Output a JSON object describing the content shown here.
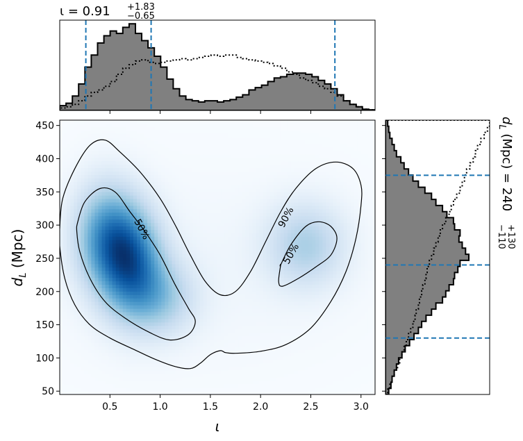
{
  "chart_data": [
    {
      "id": "joint",
      "type": "heatmap",
      "xlabel": "ι",
      "ylabel": "d_L (Mpc)",
      "xlim": [
        0.0,
        3.14
      ],
      "ylim": [
        45,
        458
      ],
      "xticks": [
        0.5,
        1.0,
        1.5,
        2.0,
        2.5,
        3.0
      ],
      "xtick_labels": [
        "0.5",
        "1.0",
        "1.5",
        "2.0",
        "2.5",
        "3.0"
      ],
      "yticks": [
        50,
        100,
        150,
        200,
        250,
        300,
        350,
        400,
        450
      ],
      "ytick_labels": [
        "50",
        "100",
        "150",
        "200",
        "250",
        "300",
        "350",
        "400",
        "450"
      ],
      "colormap": "Blues",
      "density_peaks": [
        {
          "x": 0.7,
          "y": 245,
          "weight": 1.0
        },
        {
          "x": 0.45,
          "y": 285,
          "weight": 0.7
        },
        {
          "x": 1.0,
          "y": 190,
          "weight": 0.45
        },
        {
          "x": 2.45,
          "y": 270,
          "weight": 0.45
        }
      ],
      "contours": [
        {
          "label": "90%",
          "label_at": [
            2.25,
            312
          ],
          "paths": [
            [
              [
                0.0,
                295
              ],
              [
                0.03,
                340
              ],
              [
                0.15,
                385
              ],
              [
                0.3,
                420
              ],
              [
                0.45,
                428
              ],
              [
                0.6,
                410
              ],
              [
                0.8,
                380
              ],
              [
                1.0,
                340
              ],
              [
                1.15,
                300
              ],
              [
                1.3,
                255
              ],
              [
                1.45,
                215
              ],
              [
                1.6,
                195
              ],
              [
                1.75,
                200
              ],
              [
                1.9,
                230
              ],
              [
                2.05,
                275
              ],
              [
                2.2,
                320
              ],
              [
                2.35,
                355
              ],
              [
                2.55,
                385
              ],
              [
                2.75,
                395
              ],
              [
                2.92,
                385
              ],
              [
                3.0,
                360
              ],
              [
                3.0,
                330
              ],
              [
                2.95,
                280
              ],
              [
                2.85,
                230
              ],
              [
                2.7,
                185
              ],
              [
                2.5,
                145
              ],
              [
                2.25,
                120
              ],
              [
                2.0,
                110
              ],
              [
                1.75,
                107
              ],
              [
                1.65,
                108
              ],
              [
                1.6,
                111
              ],
              [
                1.5,
                105
              ],
              [
                1.4,
                92
              ],
              [
                1.3,
                84
              ],
              [
                1.15,
                87
              ],
              [
                0.95,
                98
              ],
              [
                0.75,
                112
              ],
              [
                0.5,
                130
              ],
              [
                0.3,
                150
              ],
              [
                0.15,
                180
              ],
              [
                0.05,
                220
              ],
              [
                0.0,
                268
              ]
            ]
          ]
        },
        {
          "label": "50%",
          "label_at": [
            0.82,
            294
          ],
          "paths": [
            [
              [
                0.18,
                305
              ],
              [
                0.25,
                335
              ],
              [
                0.4,
                355
              ],
              [
                0.55,
                350
              ],
              [
                0.7,
                320
              ],
              [
                0.85,
                290
              ],
              [
                1.0,
                255
              ],
              [
                1.15,
                210
              ],
              [
                1.28,
                175
              ],
              [
                1.35,
                155
              ],
              [
                1.28,
                135
              ],
              [
                1.1,
                127
              ],
              [
                0.9,
                138
              ],
              [
                0.65,
                160
              ],
              [
                0.45,
                185
              ],
              [
                0.3,
                220
              ],
              [
                0.2,
                260
              ],
              [
                0.17,
                290
              ]
            ]
          ]
        },
        {
          "label": "50%",
          "label_at": [
            2.3,
            257
          ],
          "paths": [
            [
              [
                2.2,
                240
              ],
              [
                2.3,
                270
              ],
              [
                2.45,
                298
              ],
              [
                2.58,
                305
              ],
              [
                2.7,
                298
              ],
              [
                2.76,
                280
              ],
              [
                2.7,
                255
              ],
              [
                2.55,
                237
              ],
              [
                2.38,
                220
              ],
              [
                2.22,
                208
              ],
              [
                2.18,
                215
              ],
              [
                2.2,
                240
              ]
            ]
          ]
        }
      ]
    },
    {
      "id": "marginal_iota",
      "type": "area",
      "title": "ι = 0.91",
      "title_sup": "+1.83",
      "title_sub": "−0.65",
      "x_range": [
        0.0,
        3.14
      ],
      "ylim": [
        0,
        0.75
      ],
      "quantile_lines": [
        0.26,
        0.91,
        2.74
      ],
      "filled_hist": [
        0.04,
        0.06,
        0.12,
        0.22,
        0.36,
        0.46,
        0.56,
        0.62,
        0.66,
        0.64,
        0.69,
        0.72,
        0.64,
        0.58,
        0.52,
        0.45,
        0.36,
        0.26,
        0.18,
        0.12,
        0.09,
        0.08,
        0.07,
        0.08,
        0.08,
        0.07,
        0.08,
        0.09,
        0.11,
        0.13,
        0.17,
        0.19,
        0.21,
        0.24,
        0.27,
        0.28,
        0.3,
        0.31,
        0.31,
        0.3,
        0.28,
        0.25,
        0.22,
        0.18,
        0.13,
        0.08,
        0.05,
        0.03,
        0.01,
        0.005
      ],
      "dotted_hist": [
        0.02,
        0.03,
        0.05,
        0.08,
        0.12,
        0.15,
        0.17,
        0.2,
        0.24,
        0.3,
        0.35,
        0.38,
        0.41,
        0.42,
        0.4,
        0.39,
        0.4,
        0.41,
        0.42,
        0.43,
        0.42,
        0.43,
        0.44,
        0.45,
        0.46,
        0.45,
        0.46,
        0.46,
        0.44,
        0.43,
        0.42,
        0.41,
        0.4,
        0.39,
        0.37,
        0.35,
        0.32,
        0.3,
        0.27,
        0.25,
        0.23,
        0.2,
        0.18,
        0.15,
        0.12,
        0.08,
        0.05,
        0.03,
        0.01,
        0.005
      ]
    },
    {
      "id": "marginal_dL",
      "type": "area",
      "title": "d_L (Mpc) = 240",
      "title_sup": "+130",
      "title_sub": "−110",
      "y_range": [
        45,
        458
      ],
      "xlim": [
        0,
        0.95
      ],
      "quantile_lines": [
        130,
        240,
        375
      ],
      "filled_hist": [
        0.03,
        0.05,
        0.06,
        0.08,
        0.1,
        0.12,
        0.15,
        0.18,
        0.22,
        0.26,
        0.3,
        0.33,
        0.37,
        0.42,
        0.46,
        0.52,
        0.55,
        0.58,
        0.62,
        0.63,
        0.66,
        0.68,
        0.76,
        0.73,
        0.7,
        0.67,
        0.68,
        0.63,
        0.62,
        0.56,
        0.52,
        0.46,
        0.42,
        0.36,
        0.3,
        0.25,
        0.21,
        0.17,
        0.14,
        0.1,
        0.08,
        0.06,
        0.04,
        0.03,
        0.02
      ],
      "dotted_hist": [
        0.02,
        0.04,
        0.06,
        0.08,
        0.11,
        0.13,
        0.15,
        0.17,
        0.19,
        0.21,
        0.23,
        0.25,
        0.27,
        0.28,
        0.3,
        0.31,
        0.33,
        0.34,
        0.36,
        0.37,
        0.38,
        0.4,
        0.42,
        0.44,
        0.46,
        0.48,
        0.5,
        0.52,
        0.55,
        0.58,
        0.6,
        0.62,
        0.65,
        0.68,
        0.7,
        0.72,
        0.74,
        0.77,
        0.8,
        0.82,
        0.84,
        0.87,
        0.9,
        0.93,
        0.95
      ]
    }
  ],
  "colors": {
    "hist_fill": "#808080",
    "hist_edge": "#000000",
    "quantile_line": "#1f77b4",
    "contour": "#000000",
    "density_max": "#08306b"
  }
}
